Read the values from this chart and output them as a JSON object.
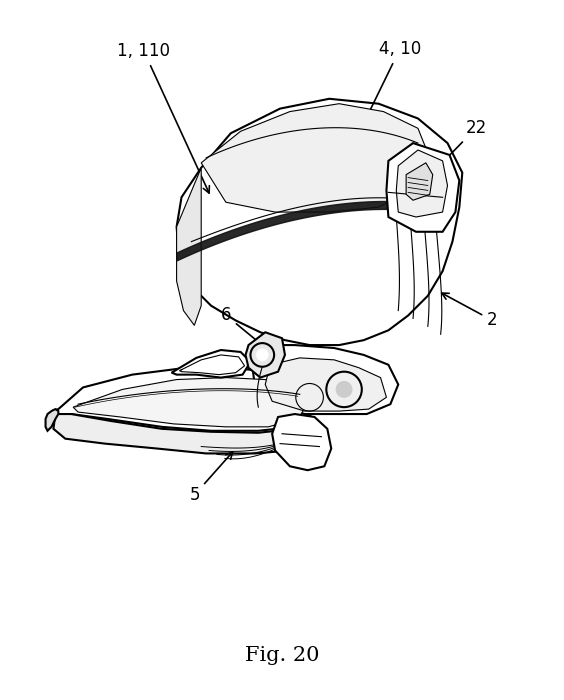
{
  "title": "Fig. 20",
  "title_fontsize": 15,
  "background_color": "#ffffff",
  "text_color": "#000000",
  "line_color": "#000000",
  "figsize": [
    5.64,
    7.0
  ],
  "dpi": 100
}
